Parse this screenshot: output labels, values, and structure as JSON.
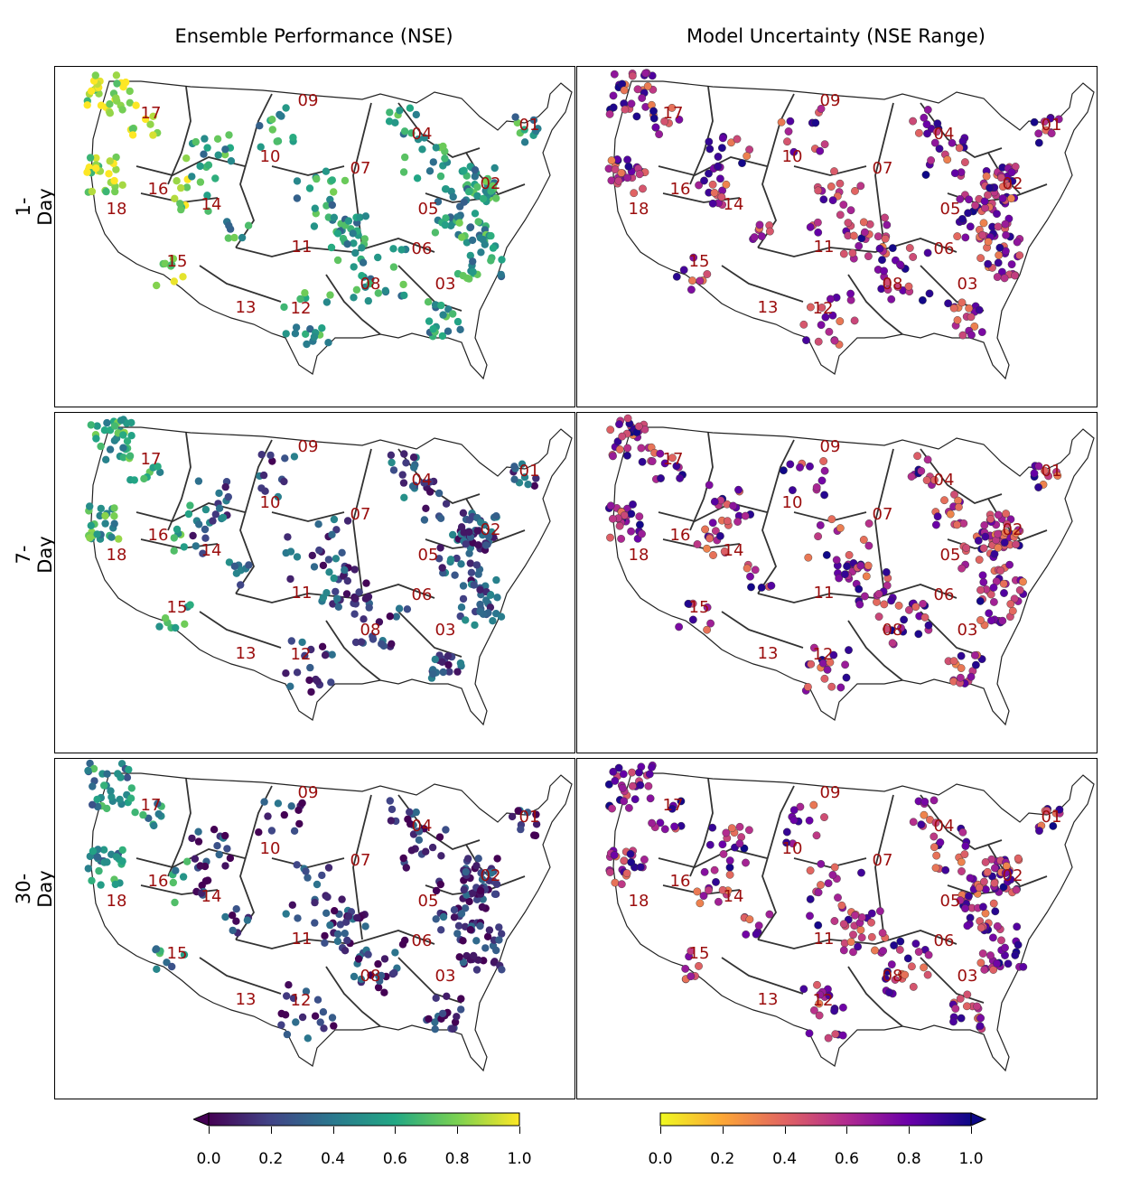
{
  "columns": [
    {
      "title": "Ensemble Performance (NSE)",
      "colormap": "viridis",
      "extend": "min"
    },
    {
      "title": "Model Uncertainty (NSE Range)",
      "colormap": "plasma_r",
      "extend": "max"
    }
  ],
  "rows": [
    {
      "label": "1-Day"
    },
    {
      "label": "7-Day"
    },
    {
      "label": "30-Day"
    }
  ],
  "region_labels": [
    "01",
    "02",
    "03",
    "04",
    "05",
    "06",
    "07",
    "08",
    "09",
    "10",
    "11",
    "12",
    "13",
    "14",
    "15",
    "16",
    "17",
    "18"
  ],
  "colorbar_ticks": [
    "0.0",
    "0.2",
    "0.4",
    "0.6",
    "0.8",
    "1.0"
  ],
  "colors": {
    "region_label": "#9b0d0d",
    "viridis": [
      "#440154",
      "#414487",
      "#2a788e",
      "#22a884",
      "#7ad151",
      "#fde725"
    ],
    "plasma_r": [
      "#f0f921",
      "#fca636",
      "#e16462",
      "#b12a90",
      "#6a00a8",
      "#0d0887"
    ]
  }
}
